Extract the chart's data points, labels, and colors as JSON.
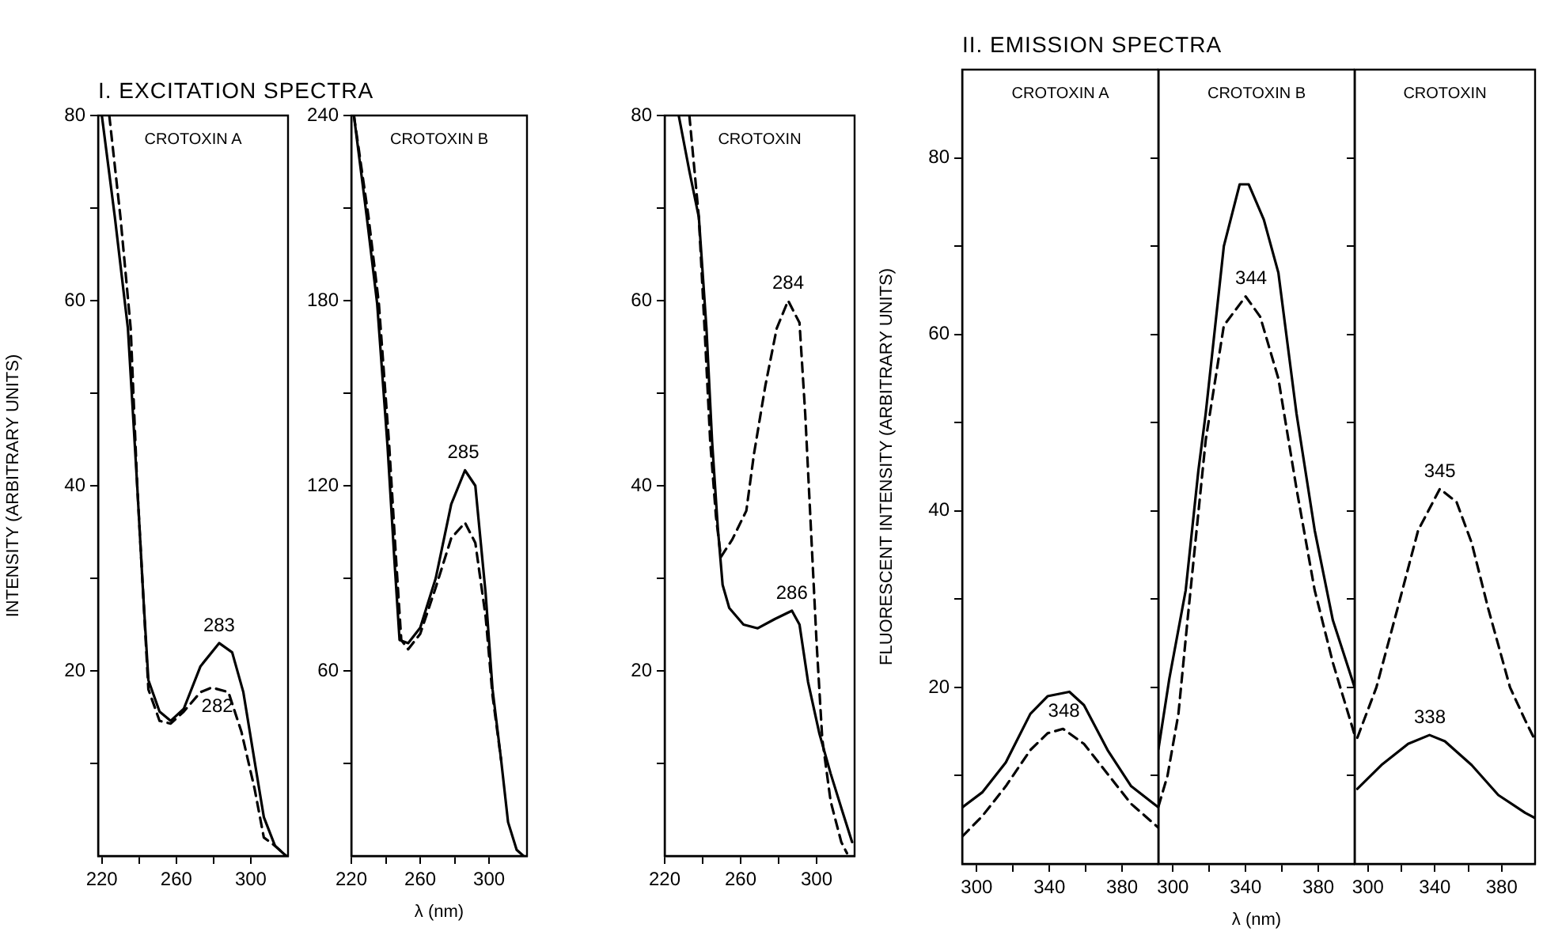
{
  "chart_data": [
    {
      "type": "line",
      "title": "CROTOXIN A",
      "ylabel": "INTENSITY (ARBITRARY UNITS)",
      "annotations": [
        "I. EXCITATION SPECTRA",
        {
          "text": "283",
          "x": 283,
          "y": 23
        },
        {
          "text": "282",
          "x": 282,
          "y": 18.2
        }
      ],
      "xlim": [
        218,
        320
      ],
      "xticks": [
        220,
        {
          "value": 240,
          "label": null
        },
        260,
        {
          "value": 280,
          "label": null
        },
        300
      ],
      "ylim": [
        0,
        80
      ],
      "yticks": [
        {
          "value": 10,
          "label": null
        },
        20,
        {
          "value": 30,
          "label": null
        },
        40,
        {
          "value": 50,
          "label": null
        },
        60,
        {
          "value": 70,
          "label": null
        },
        80
      ],
      "series": [
        {
          "color": "#000000",
          "line_style": "solid",
          "x": [
            220,
            227,
            234,
            239,
            242,
            245,
            251,
            257,
            264,
            273,
            283,
            290,
            296,
            302,
            307,
            313,
            319
          ],
          "values": [
            80,
            69,
            57,
            40,
            29,
            19,
            15.6,
            14.6,
            15.9,
            20.5,
            23,
            22,
            17.7,
            10.3,
            4.2,
            1.1,
            0
          ]
        },
        {
          "color": "#000000",
          "line_style": "dashed",
          "x": [
            224,
            230,
            235.5,
            239,
            242,
            245,
            251,
            257,
            264,
            273,
            279,
            288,
            295,
            302,
            307,
            313,
            319
          ],
          "values": [
            80,
            69,
            57,
            40,
            29,
            18,
            14.6,
            14.3,
            15.6,
            17.7,
            18.2,
            17.7,
            13.4,
            7.3,
            2,
            1.1,
            0
          ]
        }
      ]
    },
    {
      "type": "line",
      "title": "CROTOXIN B",
      "xlabel": "λ (nm)",
      "annotations": [
        {
          "text": "285",
          "x": 285,
          "y": 125
        }
      ],
      "xlim": [
        220,
        322
      ],
      "xticks": [
        220,
        {
          "value": 240,
          "label": null
        },
        260,
        {
          "value": 280,
          "label": null
        },
        300
      ],
      "ylim": [
        0,
        240
      ],
      "yticks": [
        {
          "value": 30,
          "label": null
        },
        60,
        {
          "value": 90,
          "label": null
        },
        120,
        {
          "value": 150,
          "label": null
        },
        180,
        {
          "value": 210,
          "label": null
        },
        240
      ],
      "series": [
        {
          "color": "#000000",
          "line_style": "solid",
          "x": [
            221.5,
            229,
            235,
            241,
            245,
            248,
            253,
            260,
            269,
            278,
            286,
            292,
            298,
            302,
            307,
            311,
            316,
            320
          ],
          "values": [
            240,
            207,
            179,
            133,
            96,
            70,
            69,
            74,
            90,
            114,
            125,
            120,
            85,
            54,
            31,
            11,
            2,
            0
          ]
        },
        {
          "color": "#000000",
          "line_style": "dashed",
          "x": [
            221.5,
            230,
            236,
            242,
            246,
            249,
            253,
            260,
            269,
            278,
            286,
            292,
            298,
            302,
            307
          ],
          "values": [
            240,
            207,
            179,
            133,
            96,
            70,
            67,
            72,
            87,
            103,
            108,
            101.5,
            77.5,
            52,
            31
          ]
        }
      ]
    },
    {
      "type": "line",
      "title": "CROTOXIN",
      "annotations": [
        {
          "text": "284",
          "x": 285,
          "y": 60
        },
        {
          "text": "286",
          "x": 287,
          "y": 26.5
        }
      ],
      "xlim": [
        220,
        320
      ],
      "xticks": [
        220,
        {
          "value": 240,
          "label": null
        },
        260,
        {
          "value": 280,
          "label": null
        },
        300
      ],
      "ylim": [
        0,
        80
      ],
      "yticks": [
        {
          "value": 10,
          "label": null
        },
        20,
        {
          "value": 30,
          "label": null
        },
        40,
        {
          "value": 50,
          "label": null
        },
        60,
        {
          "value": 70,
          "label": null
        },
        80
      ],
      "series": [
        {
          "color": "#000000",
          "line_style": "solid",
          "x": [
            227.4,
            233,
            238,
            242,
            245,
            248,
            250.5,
            254,
            261.5,
            269,
            278,
            287,
            291,
            295.5,
            301.5,
            307.4,
            313,
            318.7
          ],
          "values": [
            80,
            74,
            69,
            57,
            44.7,
            35.4,
            29.3,
            26.8,
            25,
            24.6,
            25.6,
            26.5,
            25,
            18.8,
            13.2,
            8.9,
            5.2,
            1.5
          ]
        },
        {
          "color": "#000000",
          "line_style": "dashed",
          "x": [
            233,
            238,
            241,
            244,
            247,
            249.6,
            255.6,
            263,
            267,
            273,
            279,
            285,
            291,
            294,
            297,
            300,
            303,
            307.4,
            313,
            316
          ],
          "values": [
            80,
            69,
            57,
            44.7,
            36.7,
            32.3,
            34.2,
            37.3,
            43.4,
            50.8,
            57,
            60,
            57.6,
            47.8,
            35.4,
            23,
            12.6,
            5.9,
            1.5,
            0.3
          ]
        }
      ]
    },
    {
      "type": "line",
      "title": "CROTOXIN A",
      "ylabel": "FLUORESCENT INTENSITY (ARBITRARY UNITS)",
      "annotations": [
        "II. EMISSION SPECTRA",
        {
          "text": "348",
          "x": 348,
          "y": 15.3
        }
      ],
      "xlim": [
        292,
        400
      ],
      "xticks": [
        300,
        {
          "value": 320,
          "label": null
        },
        340,
        {
          "value": 360,
          "label": null
        },
        380
      ],
      "ylim": [
        0,
        90
      ],
      "yticks": [
        {
          "value": 10,
          "label": null
        },
        20,
        {
          "value": 30,
          "label": null
        },
        40,
        {
          "value": 50,
          "label": null
        },
        60,
        {
          "value": 70,
          "label": null
        },
        80
      ],
      "series": [
        {
          "color": "#000000",
          "line_style": "solid",
          "x": [
            292,
            303,
            316,
            329.5,
            339,
            351,
            359,
            372,
            385,
            400
          ],
          "values": [
            6.4,
            8.1,
            11.5,
            17,
            19,
            19.5,
            18,
            12.9,
            8.8,
            6.4
          ]
        },
        {
          "color": "#000000",
          "line_style": "dashed",
          "x": [
            292,
            303,
            316,
            329.5,
            339,
            347.5,
            359,
            372,
            385,
            400
          ],
          "values": [
            3.1,
            5.4,
            8.8,
            12.9,
            14.8,
            15.3,
            13.6,
            10.2,
            6.8,
            4.1
          ]
        }
      ]
    },
    {
      "type": "line",
      "title": "CROTOXIN B",
      "xlabel": "λ (nm)",
      "tick_labels": "x",
      "annotations": [
        {
          "text": "344",
          "x": 343,
          "y": 64.3
        }
      ],
      "xlim": [
        292,
        400
      ],
      "xticks": [
        300,
        {
          "value": 320,
          "label": null
        },
        340,
        {
          "value": 360,
          "label": null
        },
        380
      ],
      "ylim": [
        0,
        90
      ],
      "yticks": [
        {
          "value": 10,
          "label": null
        },
        20,
        {
          "value": 30,
          "label": null
        },
        40,
        {
          "value": 50,
          "label": null
        },
        60,
        {
          "value": 70,
          "label": null
        },
        80
      ],
      "series": [
        {
          "color": "#000000",
          "line_style": "solid",
          "x": [
            292,
            298,
            307,
            314,
            318,
            328,
            336.7,
            341.7,
            350,
            358,
            368,
            378,
            388,
            400
          ],
          "values": [
            13,
            21,
            31,
            44.6,
            51,
            70,
            77,
            77,
            73,
            67,
            51,
            37.8,
            27.6,
            20
          ]
        },
        {
          "color": "#000000",
          "line_style": "dashed",
          "x": [
            292,
            297,
            303,
            308,
            318,
            328,
            340,
            348,
            358,
            368,
            378,
            388,
            400
          ],
          "values": [
            6.5,
            10,
            17,
            27.6,
            48,
            61,
            64.3,
            62,
            55,
            42.5,
            31,
            22.8,
            14.6
          ]
        }
      ]
    },
    {
      "type": "line",
      "title": "CROTOXIN",
      "tick_labels": "x",
      "annotations": [
        {
          "text": "338",
          "x": 337,
          "y": 14.6
        },
        {
          "text": "345",
          "x": 343,
          "y": 42.5
        }
      ],
      "xlim": [
        292,
        400
      ],
      "xticks": [
        300,
        {
          "value": 320,
          "label": null
        },
        340,
        {
          "value": 360,
          "label": null
        },
        380
      ],
      "ylim": [
        0,
        90
      ],
      "yticks": [
        {
          "value": 10,
          "label": null
        },
        20,
        {
          "value": 30,
          "label": null
        },
        40,
        {
          "value": 50,
          "label": null
        },
        60,
        {
          "value": 70,
          "label": null
        },
        80
      ],
      "series": [
        {
          "color": "#000000",
          "line_style": "solid",
          "x": [
            293.6,
            308,
            324,
            336.8,
            346,
            362,
            378,
            394,
            400
          ],
          "values": [
            8.5,
            11.2,
            13.6,
            14.6,
            13.9,
            11.2,
            7.8,
            5.8,
            5.2
          ]
        },
        {
          "color": "#000000",
          "line_style": "dashed",
          "x": [
            293.6,
            305,
            317.6,
            330,
            343,
            353,
            362,
            372,
            385,
            394,
            400
          ],
          "values": [
            14.3,
            20,
            28.9,
            37.8,
            42.5,
            41,
            36.4,
            28.9,
            20,
            16.3,
            14
          ]
        }
      ]
    }
  ]
}
